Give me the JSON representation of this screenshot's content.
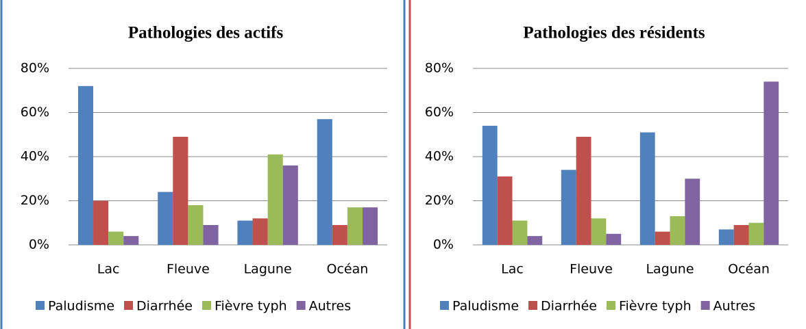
{
  "chart_data": [
    {
      "type": "bar",
      "title": "Pathologies des actifs",
      "categories": [
        "Lac",
        "Fleuve",
        "Lagune",
        "Océan"
      ],
      "series": [
        {
          "name": "Paludisme",
          "color": "#4f81bd",
          "values": [
            72,
            24,
            11,
            57
          ]
        },
        {
          "name": "Diarrhée",
          "color": "#c0504d",
          "values": [
            20,
            49,
            12,
            9
          ]
        },
        {
          "name": "Fièvre typh",
          "color": "#9bbb59",
          "values": [
            6,
            18,
            41,
            17
          ]
        },
        {
          "name": "Autres",
          "color": "#8064a2",
          "values": [
            4,
            9,
            36,
            17
          ]
        }
      ],
      "ylim": [
        0,
        80
      ],
      "yticks": [
        {
          "value": 0,
          "label": "0%"
        },
        {
          "value": 20,
          "label": "20%"
        },
        {
          "value": 40,
          "label": "40%"
        },
        {
          "value": 60,
          "label": "60%"
        },
        {
          "value": 80,
          "label": "80%"
        }
      ],
      "grid": true,
      "legend": "bottom"
    },
    {
      "type": "bar",
      "title": "Pathologies des résidents",
      "categories": [
        "Lac",
        "Fleuve",
        "Lagune",
        "Océan"
      ],
      "series": [
        {
          "name": "Paludisme",
          "color": "#4f81bd",
          "values": [
            54,
            34,
            51,
            7
          ]
        },
        {
          "name": "Diarrhée",
          "color": "#c0504d",
          "values": [
            31,
            49,
            6,
            9
          ]
        },
        {
          "name": "Fièvre typh",
          "color": "#9bbb59",
          "values": [
            11,
            12,
            13,
            10
          ]
        },
        {
          "name": "Autres",
          "color": "#8064a2",
          "values": [
            4,
            5,
            30,
            74
          ]
        }
      ],
      "ylim": [
        0,
        80
      ],
      "yticks": [
        {
          "value": 0,
          "label": "0%"
        },
        {
          "value": 20,
          "label": "20%"
        },
        {
          "value": 40,
          "label": "40%"
        },
        {
          "value": 60,
          "label": "60%"
        },
        {
          "value": 80,
          "label": "80%"
        }
      ],
      "grid": true,
      "legend": "bottom"
    }
  ]
}
